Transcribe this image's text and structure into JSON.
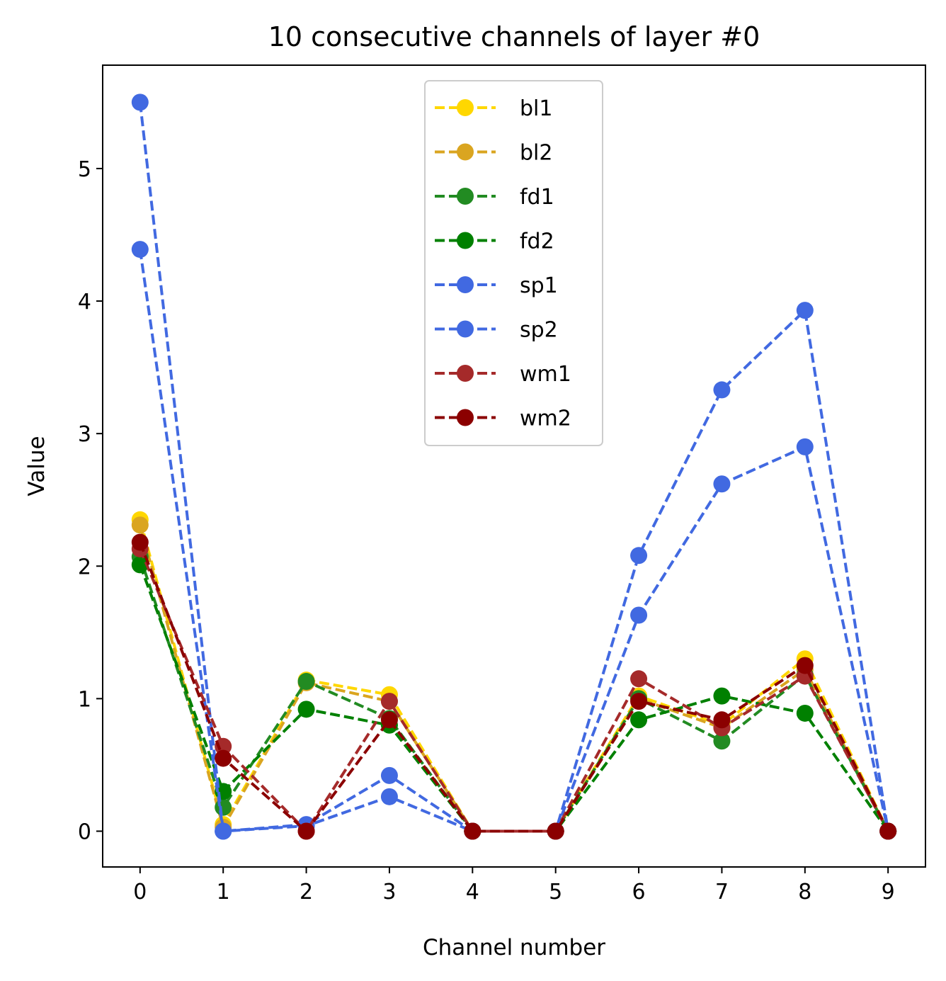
{
  "chart_data": {
    "type": "line",
    "title": "10 consecutive channels of layer #0",
    "xlabel": "Channel number",
    "ylabel": "Value",
    "x": [
      0,
      1,
      2,
      3,
      4,
      5,
      6,
      7,
      8,
      9
    ],
    "xlim": [
      -0.45,
      9.45
    ],
    "ylim": [
      -0.27,
      5.78
    ],
    "xticks": [
      0,
      1,
      2,
      3,
      4,
      5,
      6,
      7,
      8,
      9
    ],
    "yticks": [
      0,
      1,
      2,
      3,
      4,
      5
    ],
    "grid": false,
    "legend_position": "top-center",
    "line_style": "dashed",
    "marker": "circle",
    "series": [
      {
        "name": "bl1",
        "color": "#FFD700",
        "values": [
          2.35,
          0.05,
          1.14,
          1.03,
          0.0,
          0.0,
          1.02,
          0.8,
          1.3,
          0.0
        ]
      },
      {
        "name": "bl2",
        "color": "#DAA520",
        "values": [
          2.31,
          0.03,
          1.12,
          0.98,
          0.0,
          0.0,
          1.0,
          0.78,
          1.22,
          0.0
        ]
      },
      {
        "name": "fd1",
        "color": "#228B22",
        "values": [
          2.07,
          0.18,
          1.13,
          0.85,
          0.0,
          0.0,
          1.0,
          0.68,
          1.18,
          0.0
        ]
      },
      {
        "name": "fd2",
        "color": "#008000",
        "values": [
          2.01,
          0.3,
          0.92,
          0.8,
          0.0,
          0.0,
          0.84,
          1.02,
          0.89,
          0.0
        ]
      },
      {
        "name": "sp1",
        "color": "#4169E1",
        "values": [
          5.5,
          0.0,
          0.05,
          0.42,
          0.0,
          0.0,
          2.08,
          3.33,
          3.93,
          0.0
        ]
      },
      {
        "name": "sp2",
        "color": "#4169E1",
        "values": [
          4.39,
          0.0,
          0.04,
          0.26,
          0.0,
          0.0,
          1.63,
          2.62,
          2.9,
          0.0
        ]
      },
      {
        "name": "wm1",
        "color": "#A52A2A",
        "values": [
          2.13,
          0.64,
          0.0,
          0.98,
          0.0,
          0.0,
          1.15,
          0.78,
          1.17,
          0.0
        ]
      },
      {
        "name": "wm2",
        "color": "#8B0000",
        "values": [
          2.18,
          0.55,
          0.0,
          0.84,
          0.0,
          0.0,
          0.98,
          0.84,
          1.25,
          0.0
        ]
      }
    ]
  }
}
